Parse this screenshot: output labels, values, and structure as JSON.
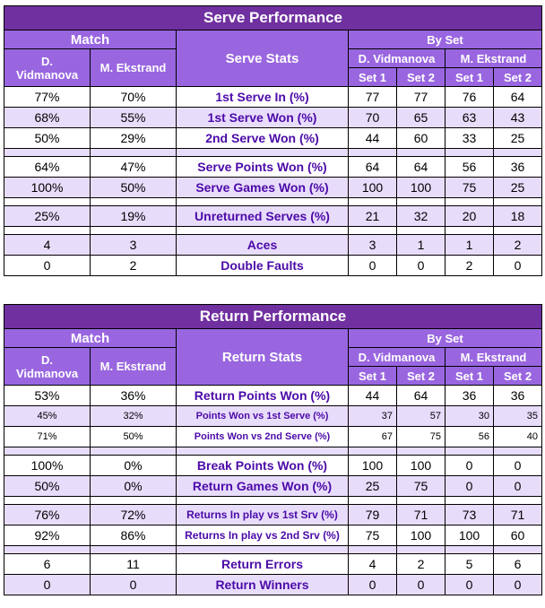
{
  "serve": {
    "title": "Serve Performance",
    "match_label": "Match",
    "stats_label": "Serve Stats",
    "byset_label": "By Set",
    "player1_full": "D. Vidmanova",
    "player1_line1": "D.",
    "player1_line2": "Vidmanova",
    "player2": "M. Ekstrand",
    "set1": "Set 1",
    "set2": "Set 2",
    "rows": [
      {
        "p1": "77%",
        "p2": "70%",
        "label": "1st Serve In (%)",
        "s1a": "77",
        "s2a": "77",
        "s1b": "76",
        "s2b": "64"
      },
      {
        "p1": "68%",
        "p2": "55%",
        "label": "1st Serve Won (%)",
        "s1a": "70",
        "s2a": "65",
        "s1b": "63",
        "s2b": "43"
      },
      {
        "p1": "50%",
        "p2": "29%",
        "label": "2nd Serve Won (%)",
        "s1a": "44",
        "s2a": "60",
        "s1b": "33",
        "s2b": "25"
      },
      {
        "p1": "64%",
        "p2": "47%",
        "label": "Serve Points Won (%)",
        "s1a": "64",
        "s2a": "64",
        "s1b": "56",
        "s2b": "36"
      },
      {
        "p1": "100%",
        "p2": "50%",
        "label": "Serve Games Won (%)",
        "s1a": "100",
        "s2a": "100",
        "s1b": "75",
        "s2b": "25"
      },
      {
        "p1": "25%",
        "p2": "19%",
        "label": "Unreturned Serves (%)",
        "s1a": "21",
        "s2a": "32",
        "s1b": "20",
        "s2b": "18"
      },
      {
        "p1": "4",
        "p2": "3",
        "label": "Aces",
        "s1a": "3",
        "s2a": "1",
        "s1b": "1",
        "s2b": "2"
      },
      {
        "p1": "0",
        "p2": "2",
        "label": "Double Faults",
        "s1a": "0",
        "s2a": "0",
        "s1b": "2",
        "s2b": "0"
      }
    ]
  },
  "return": {
    "title": "Return Performance",
    "match_label": "Match",
    "stats_label": "Return Stats",
    "byset_label": "By Set",
    "player1_full": "D. Vidmanova",
    "player1_line1": "D.",
    "player1_line2": "Vidmanova",
    "player2": "M. Ekstrand",
    "set1": "Set 1",
    "set2": "Set 2",
    "rows": [
      {
        "p1": "53%",
        "p2": "36%",
        "label": "Return Points Won (%)",
        "s1a": "44",
        "s2a": "64",
        "s1b": "36",
        "s2b": "36"
      },
      {
        "p1": "45%",
        "p2": "32%",
        "label": "Points Won vs 1st Serve (%)",
        "s1a": "37",
        "s2a": "57",
        "s1b": "30",
        "s2b": "35"
      },
      {
        "p1": "71%",
        "p2": "50%",
        "label": "Points Won vs 2nd Serve (%)",
        "s1a": "67",
        "s2a": "75",
        "s1b": "56",
        "s2b": "40"
      },
      {
        "p1": "100%",
        "p2": "0%",
        "label": "Break Points Won (%)",
        "s1a": "100",
        "s2a": "100",
        "s1b": "0",
        "s2b": "0"
      },
      {
        "p1": "50%",
        "p2": "0%",
        "label": "Return Games Won (%)",
        "s1a": "25",
        "s2a": "75",
        "s1b": "0",
        "s2b": "0"
      },
      {
        "p1": "76%",
        "p2": "72%",
        "label": "Returns In play vs 1st Srv (%)",
        "s1a": "79",
        "s2a": "71",
        "s1b": "73",
        "s2b": "71"
      },
      {
        "p1": "92%",
        "p2": "86%",
        "label": "Returns In play vs 2nd Srv (%)",
        "s1a": "75",
        "s2a": "100",
        "s1b": "100",
        "s2b": "60"
      },
      {
        "p1": "6",
        "p2": "11",
        "label": "Return Errors",
        "s1a": "4",
        "s2a": "2",
        "s1b": "5",
        "s2b": "6"
      },
      {
        "p1": "0",
        "p2": "0",
        "label": "Return Winners",
        "s1a": "0",
        "s2a": "0",
        "s1b": "0",
        "s2b": "0"
      }
    ]
  },
  "colors": {
    "title_bg": "#7030a0",
    "header_bg": "#9966e0",
    "row_lilac": "#e8dcfb",
    "label_text": "#4b0aa8"
  }
}
